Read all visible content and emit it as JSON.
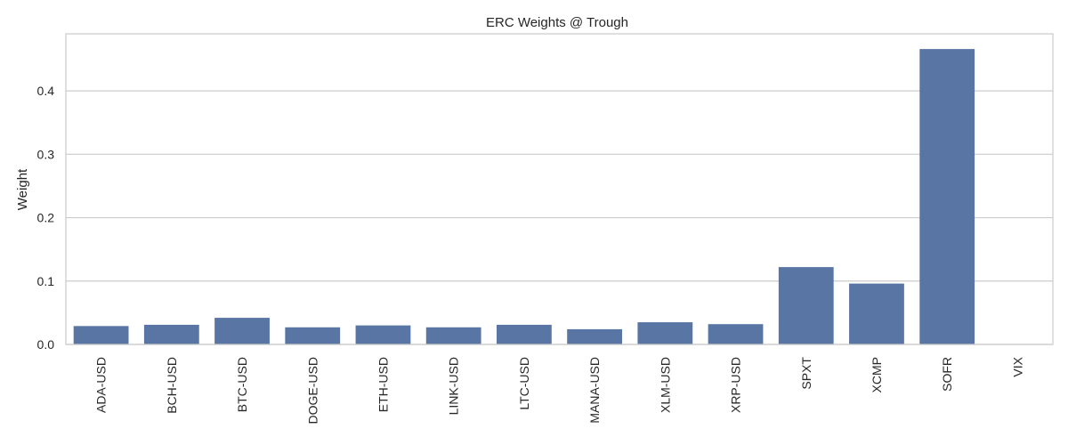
{
  "chart_data": {
    "type": "bar",
    "title": "ERC Weights @ Trough",
    "xlabel": "",
    "ylabel": "Weight",
    "categories": [
      "ADA-USD",
      "BCH-USD",
      "BTC-USD",
      "DOGE-USD",
      "ETH-USD",
      "LINK-USD",
      "LTC-USD",
      "MANA-USD",
      "XLM-USD",
      "XRP-USD",
      "SPXT",
      "XCMP",
      "SOFR",
      "VIX"
    ],
    "values": [
      0.029,
      0.031,
      0.042,
      0.027,
      0.03,
      0.027,
      0.031,
      0.024,
      0.035,
      0.032,
      0.122,
      0.096,
      0.466,
      0.0
    ],
    "yticks": [
      0.0,
      0.1,
      0.2,
      0.3,
      0.4
    ],
    "ytick_labels": [
      "0.0",
      "0.1",
      "0.2",
      "0.3",
      "0.4"
    ],
    "ylim": [
      0,
      0.49
    ],
    "grid": true,
    "bar_color": "#5875a4",
    "grid_color": "#cccccc",
    "spine_color": "#cccccc"
  }
}
